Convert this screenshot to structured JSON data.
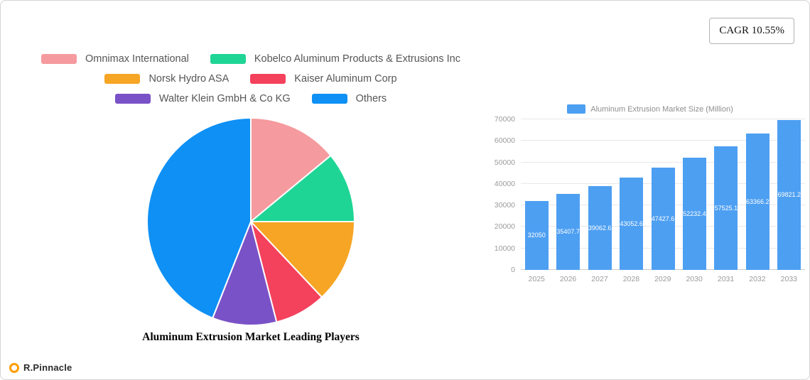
{
  "cagr_badge": {
    "label": "CAGR 10.55%"
  },
  "branding": {
    "text": "R.Pinnacle"
  },
  "chart_data": [
    {
      "type": "pie",
      "title": "Aluminum Extrusion Market Leading Players",
      "legend_rows": [
        [
          0,
          1
        ],
        [
          2,
          3
        ],
        [
          4,
          5
        ]
      ],
      "start_angle_deg": 0,
      "direction": "clockwise",
      "slices": [
        {
          "label": "Omnimax International",
          "value": 14,
          "color": "#f59a9e"
        },
        {
          "label": "Kobelco Aluminum Products & Extrusions Inc",
          "value": 11,
          "color": "#1fd596"
        },
        {
          "label": "Norsk Hydro ASA",
          "value": 13,
          "color": "#f6a525"
        },
        {
          "label": "Kaiser Aluminum Corp",
          "value": 8,
          "color": "#f4415c"
        },
        {
          "label": "Walter Klein GmbH & Co  KG",
          "value": 10,
          "color": "#7a52c7"
        },
        {
          "label": "Others",
          "value": 44,
          "color": "#0e90f5"
        }
      ]
    },
    {
      "type": "bar",
      "legend_label": "Aluminum Extrusion Market Size (Million)",
      "legend_position": "top",
      "grid": true,
      "bar_color": "#4d9ff2",
      "categories": [
        "2025",
        "2026",
        "2027",
        "2028",
        "2029",
        "2030",
        "2031",
        "2032",
        "2033"
      ],
      "values": [
        32050,
        35407.7,
        39062.6,
        43052.6,
        47427.6,
        52232.4,
        57525.1,
        63366.2,
        69821.2
      ],
      "value_labels": [
        "32050",
        "35407.7",
        "39062.6",
        "43052.6",
        "47427.6",
        "52232.4",
        "57525.1",
        "63366.2",
        "69821.2"
      ],
      "ylim": [
        0,
        70000
      ],
      "yticks": [
        0,
        10000,
        20000,
        30000,
        40000,
        50000,
        60000,
        70000
      ]
    }
  ]
}
